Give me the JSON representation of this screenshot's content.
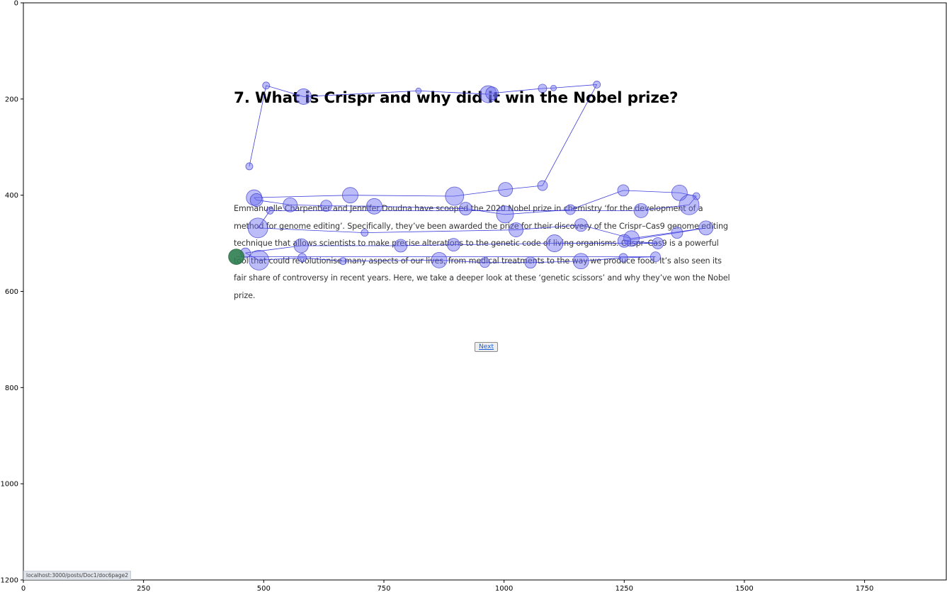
{
  "page": {
    "title": "7. What is Crispr and why did it win the Nobel prize?",
    "body": "Emmanuelle Charpentier and Jennifer Doudna have scooped the 2020 Nobel prize in chemistry ‘for the development of a method for genome editing’. Specifically, they’ve been awarded the prize for their discovery of the Crispr–Cas9 genome editing technique that allows scientists to make precise alterations to the genetic code of living organisms. Crispr–Cas9 is a powerful tool that could revolutionise many aspects of our lives, from medical treatments to the way we produce food. It’s also seen its fair share of controversy in recent years. Here, we take a deeper look at these ‘genetic scissors’ and why they’ve won the Nobel prize.",
    "next_label": "Next",
    "status_url": "localhost:3000/posts/Doc1/doc6page2"
  },
  "chart_data": {
    "type": "scatter",
    "title": "",
    "xlabel": "",
    "ylabel": "",
    "xlim": [
      0,
      1920
    ],
    "ylim": [
      1200,
      0
    ],
    "xticks": [
      0,
      250,
      500,
      750,
      1000,
      1250,
      1500,
      1750
    ],
    "yticks": [
      0,
      200,
      400,
      600,
      800,
      1000,
      1200
    ],
    "grid": false,
    "colors": {
      "fixation_fill": "#6a6af0",
      "fixation_stroke": "#3c3ccc",
      "scanpath": "#1a1ad6",
      "last_fixation": "#2e7d4f"
    },
    "fixations": [
      [
        470,
        340,
        5
      ],
      [
        505,
        172,
        5
      ],
      [
        583,
        195,
        11
      ],
      [
        822,
        183,
        4
      ],
      [
        967,
        190,
        12
      ],
      [
        975,
        188,
        9
      ],
      [
        1080,
        178,
        6
      ],
      [
        1103,
        177,
        4
      ],
      [
        1193,
        170,
        5
      ],
      [
        1080,
        380,
        7
      ],
      [
        1003,
        388,
        10
      ],
      [
        897,
        402,
        13
      ],
      [
        680,
        400,
        11
      ],
      [
        480,
        405,
        11
      ],
      [
        485,
        410,
        9
      ],
      [
        555,
        420,
        10
      ],
      [
        630,
        422,
        8
      ],
      [
        730,
        423,
        11
      ],
      [
        920,
        428,
        9
      ],
      [
        1002,
        440,
        12
      ],
      [
        1138,
        430,
        7
      ],
      [
        1248,
        390,
        8
      ],
      [
        1365,
        395,
        11
      ],
      [
        1400,
        402,
        5
      ],
      [
        1385,
        420,
        14
      ],
      [
        1285,
        432,
        10
      ],
      [
        513,
        432,
        5
      ],
      [
        488,
        468,
        14
      ],
      [
        710,
        478,
        5
      ],
      [
        1025,
        472,
        10
      ],
      [
        1160,
        462,
        9
      ],
      [
        1265,
        490,
        11
      ],
      [
        1420,
        468,
        10
      ],
      [
        1360,
        478,
        8
      ],
      [
        1250,
        495,
        9
      ],
      [
        1320,
        500,
        8
      ],
      [
        1105,
        500,
        12
      ],
      [
        895,
        503,
        9
      ],
      [
        785,
        505,
        9
      ],
      [
        578,
        505,
        10
      ],
      [
        462,
        520,
        7
      ],
      [
        490,
        535,
        14
      ],
      [
        580,
        530,
        6
      ],
      [
        665,
        537,
        5
      ],
      [
        865,
        535,
        11
      ],
      [
        960,
        540,
        7
      ],
      [
        1055,
        540,
        8
      ],
      [
        1160,
        537,
        11
      ],
      [
        1248,
        530,
        6
      ],
      [
        1315,
        528,
        7
      ],
      [
        443,
        528,
        11
      ]
    ]
  }
}
